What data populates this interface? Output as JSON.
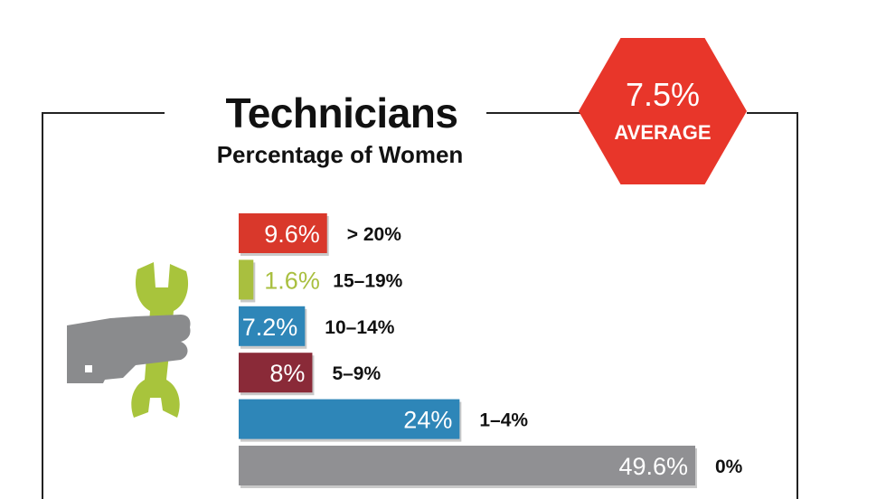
{
  "header": {
    "title": "Technicians",
    "subtitle": "Percentage of Women"
  },
  "badge": {
    "value": "7.5%",
    "label": "AVERAGE",
    "color": "#e8362a"
  },
  "icon": {
    "name": "hand-holding-wrench-icon",
    "hand_color": "#8a8b8d",
    "wrench_color": "#a8c43c"
  },
  "chart_data": {
    "type": "bar",
    "orientation": "horizontal",
    "categories": [
      "> 20%",
      "15–19%",
      "10–14%",
      "5–9%",
      "1–4%",
      "0%"
    ],
    "values": [
      9.6,
      1.6,
      7.2,
      8,
      24,
      49.6
    ],
    "value_labels": [
      "9.6%",
      "1.6%",
      "7.2%",
      "8%",
      "24%",
      "49.6%"
    ],
    "colors": [
      "#d9382b",
      "#a9bf3f",
      "#2e86b8",
      "#8a2a38",
      "#2e86b8",
      "#909093"
    ],
    "label_colors": [
      "#ffffff",
      "#a9bf3f",
      "#ffffff",
      "#ffffff",
      "#ffffff",
      "#ffffff"
    ],
    "xlim": [
      0,
      49.6
    ],
    "grid": false,
    "legend": "none"
  }
}
